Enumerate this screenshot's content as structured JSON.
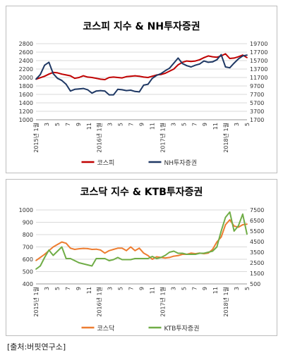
{
  "source_note": "[출처:버핏연구소]",
  "chart_data": [
    {
      "type": "line",
      "title": "코스피 지수 & NH투자증권",
      "x_labels": [
        "2015년 1월",
        "3",
        "5",
        "7",
        "9",
        "11",
        "2016년 1월",
        "3",
        "5",
        "7",
        "9",
        "11",
        "2017년 1월",
        "3",
        "5",
        "7",
        "9",
        "11",
        "2018년 1월",
        "3",
        "5"
      ],
      "ylim_left": [
        1000,
        2800
      ],
      "yticks_left": [
        1000,
        1200,
        1400,
        1600,
        1800,
        2000,
        2200,
        2400,
        2600,
        2800
      ],
      "ylim_right": [
        1700,
        19700
      ],
      "yticks_right": [
        1700,
        3700,
        5700,
        7700,
        9700,
        11700,
        13700,
        15700,
        17700,
        19700
      ],
      "legend_position": "bottom",
      "series": [
        {
          "name": "코스피",
          "color": "#c00000",
          "axis": "left",
          "values": [
            1960,
            1995,
            2030,
            2080,
            2120,
            2110,
            2080,
            2060,
            2040,
            1980,
            2000,
            2040,
            2010,
            2000,
            1980,
            1960,
            1950,
            2000,
            2010,
            2000,
            1990,
            2020,
            2030,
            2040,
            2030,
            2010,
            2000,
            2030,
            2060,
            2070,
            2100,
            2150,
            2200,
            2300,
            2360,
            2390,
            2380,
            2390,
            2420,
            2470,
            2510,
            2490,
            2480,
            2510,
            2560,
            2450,
            2460,
            2490,
            2530,
            2470
          ]
        },
        {
          "name": "NH투자증권",
          "color": "#1f3864",
          "axis": "right",
          "values": [
            11300,
            12400,
            14600,
            15300,
            12600,
            11500,
            11000,
            10100,
            8500,
            8900,
            9000,
            9100,
            8800,
            8000,
            8500,
            8600,
            8500,
            7600,
            7600,
            8900,
            8800,
            8600,
            8700,
            8400,
            8300,
            9900,
            10100,
            11500,
            12200,
            12600,
            13300,
            13900,
            15100,
            16300,
            15000,
            14500,
            14200,
            14600,
            14900,
            15600,
            15300,
            15400,
            15900,
            17100,
            14200,
            14000,
            15100,
            16100,
            16800,
            17000
          ]
        }
      ]
    },
    {
      "type": "line",
      "title": "코스닥 지수 & KTB투자증권",
      "x_labels": [
        "2015년 1월",
        "3",
        "5",
        "7",
        "9",
        "11",
        "2016년 1월",
        "3",
        "5",
        "7",
        "9",
        "11",
        "2017년 1월",
        "3",
        "5",
        "7",
        "9",
        "11",
        "2018년 1월",
        "3",
        "5"
      ],
      "ylim_left": [
        400,
        1000
      ],
      "yticks_left": [
        400,
        500,
        600,
        700,
        800,
        900,
        1000
      ],
      "ylim_right": [
        500,
        7500
      ],
      "yticks_right": [
        500,
        1500,
        2500,
        3500,
        4500,
        5500,
        6500,
        7500
      ],
      "legend_position": "bottom",
      "series": [
        {
          "name": "코스닥",
          "color": "#ed7d31",
          "axis": "left",
          "values": [
            590,
            615,
            640,
            670,
            700,
            720,
            740,
            730,
            690,
            680,
            685,
            688,
            686,
            680,
            682,
            675,
            650,
            670,
            680,
            690,
            690,
            670,
            700,
            670,
            690,
            650,
            630,
            600,
            620,
            615,
            610,
            615,
            625,
            630,
            640,
            640,
            650,
            645,
            650,
            645,
            650,
            680,
            740,
            780,
            880,
            920,
            870,
            860,
            880,
            885
          ]
        },
        {
          "name": "KTB투자증권",
          "color": "#70ad47",
          "axis": "right",
          "values": [
            1900,
            2200,
            3000,
            3700,
            3200,
            3600,
            4000,
            2900,
            2900,
            2700,
            2500,
            2400,
            2300,
            2200,
            2900,
            2900,
            2900,
            2700,
            2800,
            3000,
            2800,
            2800,
            2800,
            2900,
            2900,
            2900,
            2900,
            3100,
            2900,
            3000,
            3200,
            3500,
            3600,
            3400,
            3400,
            3300,
            3300,
            3300,
            3400,
            3400,
            3500,
            3600,
            4000,
            5500,
            6800,
            7300,
            5500,
            6000,
            7100,
            5200
          ]
        }
      ]
    }
  ]
}
